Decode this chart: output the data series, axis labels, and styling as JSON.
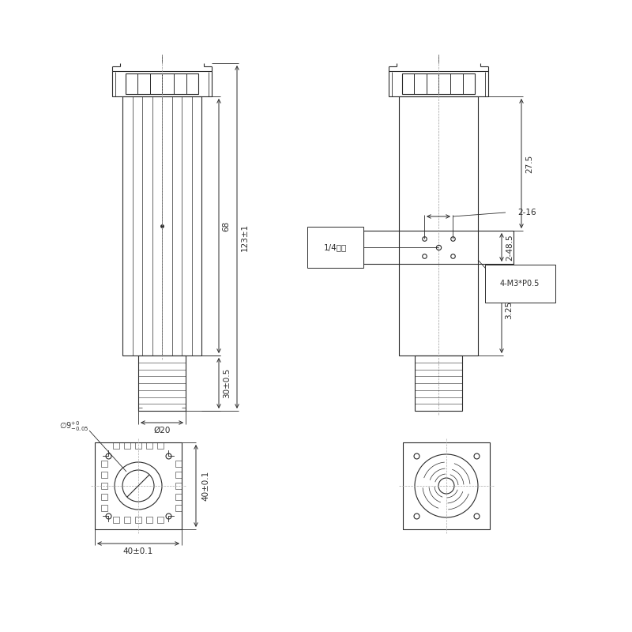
{
  "bg_color": "#ffffff",
  "line_color": "#2a2a2a",
  "text_color": "#2a2a2a",
  "annotations": {
    "dim_68": "68",
    "dim_123": "123±1",
    "dim_48_5": "2-48.5",
    "dim_27_5": "27.5",
    "dim_2_16": "2-16",
    "dim_30": "30±0.5",
    "dim_20": "Ø20",
    "dim_40h": "40±0.1",
    "dim_40v": "40±0.1",
    "dim_9": "Ø9⁺⁰₋₀.₀₅",
    "dim_3_25": "3.25",
    "label_14": "1/4英制",
    "label_m3": "4-M3*P0.5"
  }
}
